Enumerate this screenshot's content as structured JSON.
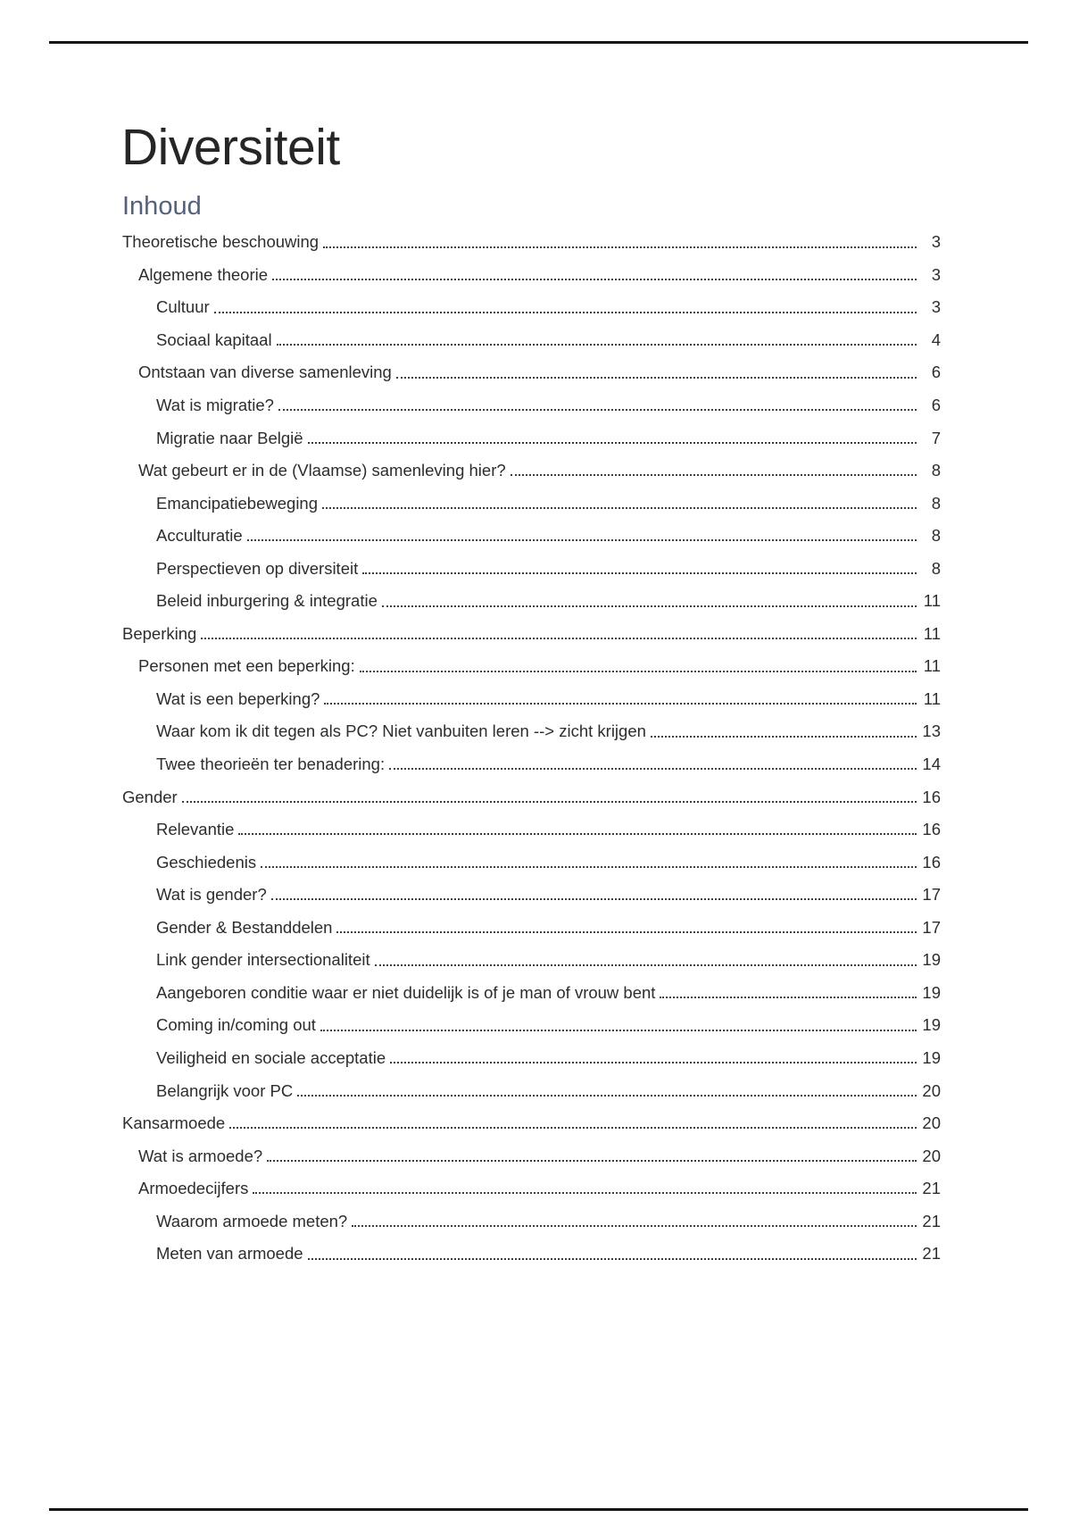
{
  "document": {
    "title": "Diversiteit",
    "toc_heading": "Inhoud"
  },
  "colors": {
    "title_text": "#262626",
    "toc_heading_text": "#54617c",
    "toc_entry_text": "#2d2d2d",
    "leader_dots": "#3e3e3e",
    "horizontal_rule": "#151515",
    "page_background": "#ffffff"
  },
  "toc": {
    "entries": [
      {
        "label": "Theoretische beschouwing",
        "level": 0,
        "page": "3"
      },
      {
        "label": "Algemene theorie",
        "level": 1,
        "page": "3"
      },
      {
        "label": "Cultuur",
        "level": 2,
        "page": "3"
      },
      {
        "label": "Sociaal kapitaal",
        "level": 2,
        "page": "4"
      },
      {
        "label": "Ontstaan van diverse samenleving",
        "level": 1,
        "page": "6"
      },
      {
        "label": "Wat is migratie?",
        "level": 2,
        "page": "6"
      },
      {
        "label": "Migratie naar België",
        "level": 2,
        "page": "7"
      },
      {
        "label": "Wat gebeurt er in de (Vlaamse) samenleving hier?",
        "level": 1,
        "page": "8"
      },
      {
        "label": "Emancipatiebeweging",
        "level": 2,
        "page": "8"
      },
      {
        "label": "Acculturatie",
        "level": 2,
        "page": "8"
      },
      {
        "label": "Perspectieven op diversiteit",
        "level": 2,
        "page": "8"
      },
      {
        "label": "Beleid inburgering & integratie",
        "level": 2,
        "page": "11"
      },
      {
        "label": "Beperking",
        "level": 0,
        "page": "11"
      },
      {
        "label": "Personen met een beperking:",
        "level": 1,
        "page": "11"
      },
      {
        "label": "Wat is een beperking?",
        "level": 2,
        "page": "11"
      },
      {
        "label": "Waar kom ik dit tegen als PC? Niet vanbuiten leren --> zicht krijgen",
        "level": 2,
        "page": "13"
      },
      {
        "label": "Twee theorieën ter benadering:",
        "level": 2,
        "page": "14"
      },
      {
        "label": "Gender",
        "level": 0,
        "page": "16"
      },
      {
        "label": "Relevantie",
        "level": 2,
        "page": "16"
      },
      {
        "label": "Geschiedenis",
        "level": 2,
        "page": "16"
      },
      {
        "label": "Wat is gender?",
        "level": 2,
        "page": "17"
      },
      {
        "label": "Gender & Bestanddelen",
        "level": 2,
        "page": "17"
      },
      {
        "label": "Link gender intersectionaliteit",
        "level": 2,
        "page": "19"
      },
      {
        "label": "Aangeboren conditie waar er niet duidelijk is of je man of vrouw bent",
        "level": 2,
        "page": "19"
      },
      {
        "label": "Coming in/coming out",
        "level": 2,
        "page": "19"
      },
      {
        "label": "Veiligheid en sociale acceptatie",
        "level": 2,
        "page": "19"
      },
      {
        "label": "Belangrijk voor PC",
        "level": 2,
        "page": "20"
      },
      {
        "label": "Kansarmoede",
        "level": 0,
        "page": "20"
      },
      {
        "label": "Wat is armoede?",
        "level": 1,
        "page": "20"
      },
      {
        "label": "Armoedecijfers",
        "level": 1,
        "page": "21"
      },
      {
        "label": "Waarom armoede meten?",
        "level": 2,
        "page": "21"
      },
      {
        "label": "Meten van armoede",
        "level": 2,
        "page": "21"
      }
    ]
  }
}
